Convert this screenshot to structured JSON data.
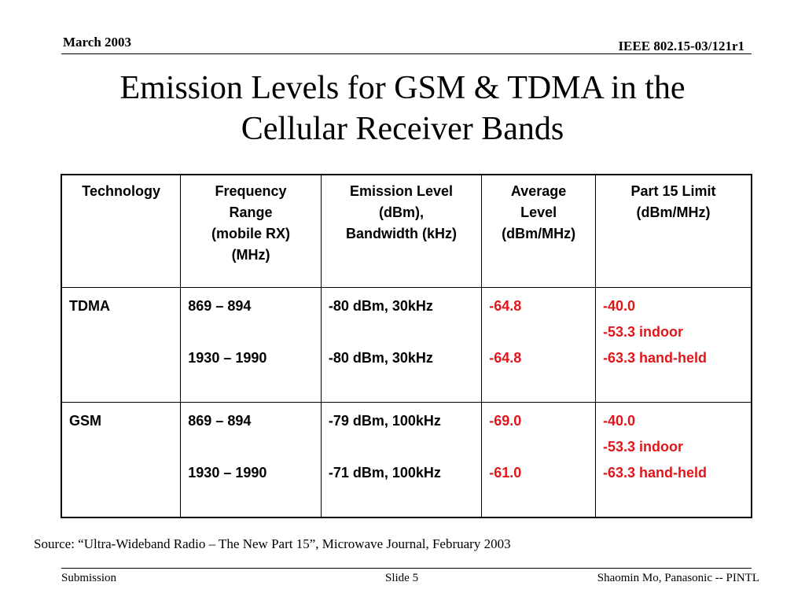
{
  "header": {
    "date": "March 2003",
    "doc_id": "IEEE 802.15-03/121r1"
  },
  "title": {
    "line1": "Emission Levels for GSM & TDMA in the",
    "line2": "Cellular Receiver Bands"
  },
  "table": {
    "headers": [
      [
        "Technology"
      ],
      [
        "Frequency",
        "Range",
        "(mobile RX)",
        "(MHz)"
      ],
      [
        "Emission Level",
        "(dBm),",
        "Bandwidth (kHz)"
      ],
      [
        "Average",
        "Level",
        "(dBm/MHz)"
      ],
      [
        "Part 15 Limit",
        "(dBm/MHz)"
      ]
    ],
    "rows": [
      {
        "technology": "TDMA",
        "freq": [
          "869 – 894",
          "1930 – 1990"
        ],
        "emission": [
          "-80 dBm, 30kHz",
          "-80 dBm, 30kHz"
        ],
        "average": [
          "-64.8",
          "-64.8"
        ],
        "limit": [
          "-40.0",
          "-53.3 indoor",
          "-63.3 hand-held"
        ]
      },
      {
        "technology": "GSM",
        "freq": [
          "869 – 894",
          "1930 – 1990"
        ],
        "emission": [
          "-79 dBm, 100kHz",
          "-71 dBm, 100kHz"
        ],
        "average": [
          "-69.0",
          "-61.0"
        ],
        "limit": [
          "-40.0",
          "-53.3 indoor",
          "-63.3 hand-held"
        ]
      }
    ],
    "highlight_color": "#e0161b"
  },
  "source": "Source: “Ultra-Wideband Radio – The New Part 15”, Microwave Journal, February 2003",
  "footer": {
    "left": "Submission",
    "center": "Slide 5",
    "right": "Shaomin Mo, Panasonic -- PINTL"
  }
}
